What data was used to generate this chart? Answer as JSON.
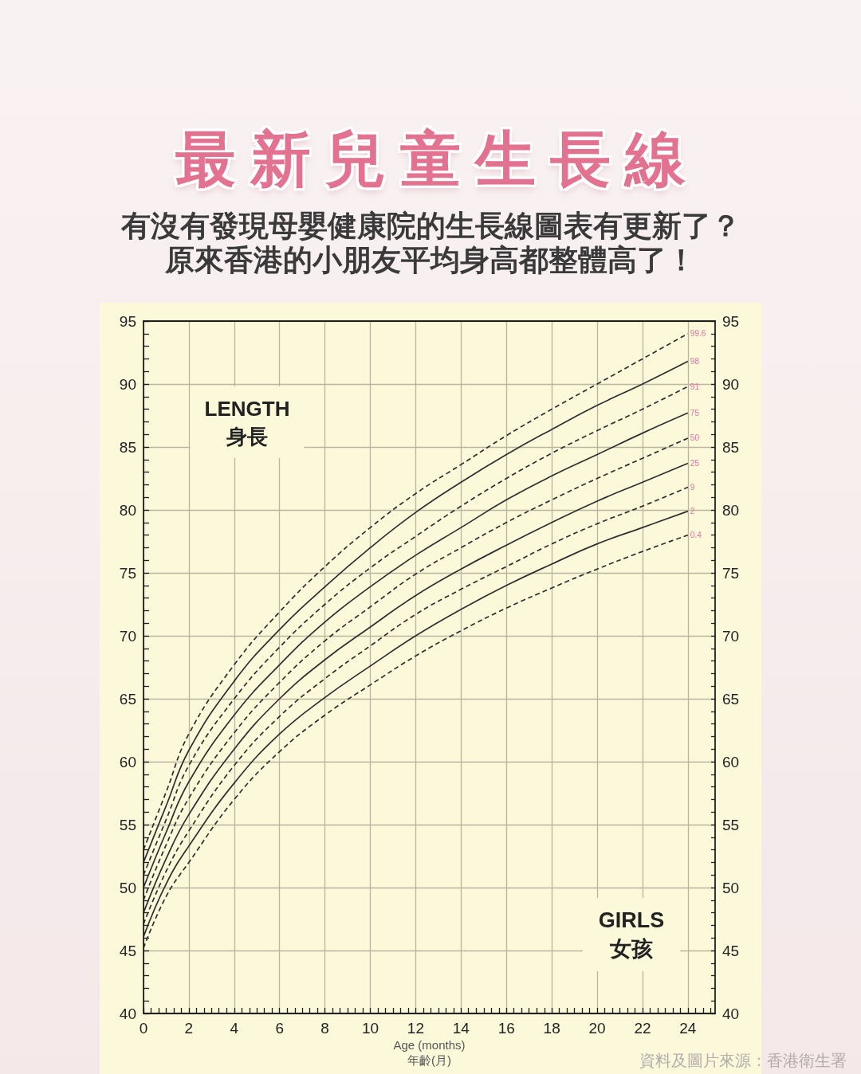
{
  "chart_data": {
    "type": "line",
    "title": "最新兒童生長線",
    "subtitle": "有沒有發現母嬰健康院的生長線圖表有更新了？原來香港的小朋友平均身高都整體高了！",
    "xlabel": "Age (months)\n年齡(月)",
    "ylabel": "LENGTH\n身長",
    "annotations": [
      "GIRLS\n女孩",
      "資料及圖片來源：香港衛生署"
    ],
    "x": [
      0,
      1,
      2,
      4,
      6,
      8,
      10,
      12,
      14,
      16,
      18,
      20,
      22,
      24
    ],
    "series": [
      {
        "name": "99.6",
        "color": "#2e2e2e",
        "line_style": "dashed",
        "values": [
          53.0,
          57.6,
          62.2,
          67.7,
          71.9,
          75.5,
          78.6,
          81.3,
          83.6,
          85.9,
          88.0,
          90.0,
          92.0,
          94.0
        ]
      },
      {
        "name": "98",
        "color": "#2e2e2e",
        "line_style": "solid",
        "values": [
          52.0,
          56.5,
          60.9,
          66.4,
          70.5,
          73.9,
          77.0,
          79.8,
          82.2,
          84.4,
          86.4,
          88.3,
          90.0,
          91.8
        ]
      },
      {
        "name": "91",
        "color": "#2e2e2e",
        "line_style": "dashed",
        "values": [
          51.0,
          55.4,
          59.7,
          65.0,
          69.1,
          72.5,
          75.4,
          77.9,
          80.3,
          82.5,
          84.5,
          86.3,
          88.0,
          89.8
        ]
      },
      {
        "name": "75",
        "color": "#2e2e2e",
        "line_style": "solid",
        "values": [
          50.0,
          54.4,
          58.4,
          63.7,
          67.7,
          71.1,
          73.9,
          76.4,
          78.6,
          80.8,
          82.7,
          84.4,
          86.1,
          87.7
        ]
      },
      {
        "name": "50",
        "color": "#2e2e2e",
        "line_style": "dashed",
        "values": [
          49.0,
          53.4,
          57.1,
          62.3,
          66.3,
          69.6,
          72.3,
          74.9,
          77.0,
          79.0,
          80.8,
          82.5,
          84.1,
          85.7
        ]
      },
      {
        "name": "25",
        "color": "#2e2e2e",
        "line_style": "solid",
        "values": [
          48.0,
          52.3,
          55.8,
          61.0,
          65.0,
          68.1,
          70.7,
          73.2,
          75.3,
          77.2,
          79.0,
          80.7,
          82.2,
          83.7
        ]
      },
      {
        "name": "9",
        "color": "#2e2e2e",
        "line_style": "dashed",
        "values": [
          47.1,
          51.3,
          54.5,
          59.7,
          63.6,
          66.6,
          69.2,
          71.7,
          73.7,
          75.5,
          77.3,
          78.9,
          80.3,
          81.8
        ]
      },
      {
        "name": "2",
        "color": "#2e2e2e",
        "line_style": "solid",
        "values": [
          46.1,
          50.3,
          53.3,
          58.3,
          62.2,
          65.1,
          67.6,
          70.0,
          72.1,
          74.0,
          75.7,
          77.3,
          78.6,
          79.9
        ]
      },
      {
        "name": "0.4",
        "color": "#2e2e2e",
        "line_style": "dashed",
        "values": [
          45.2,
          49.3,
          52.0,
          57.0,
          60.8,
          63.7,
          66.1,
          68.4,
          70.4,
          72.2,
          73.8,
          75.3,
          76.7,
          78.0
        ]
      }
    ],
    "xlim": [
      0,
      25.2
    ],
    "xticks": [
      0,
      {
        "value": 0.33,
        "label": null
      },
      {
        "value": 0.67,
        "label": null
      },
      {
        "value": 1,
        "label": null
      },
      {
        "value": 1.33,
        "label": null
      },
      {
        "value": 1.67,
        "label": null
      },
      2,
      {
        "value": 2.33,
        "label": null
      },
      {
        "value": 2.67,
        "label": null
      },
      {
        "value": 3,
        "label": null
      },
      {
        "value": 3.33,
        "label": null
      },
      {
        "value": 3.67,
        "label": null
      },
      4,
      {
        "value": 4.33,
        "label": null
      },
      {
        "value": 4.67,
        "label": null
      },
      {
        "value": 5,
        "label": null
      },
      {
        "value": 5.33,
        "label": null
      },
      {
        "value": 5.67,
        "label": null
      },
      6,
      {
        "value": 6.33,
        "label": null
      },
      {
        "value": 6.67,
        "label": null
      },
      {
        "value": 7,
        "label": null
      },
      {
        "value": 7.33,
        "label": null
      },
      {
        "value": 7.67,
        "label": null
      },
      8,
      {
        "value": 8.33,
        "label": null
      },
      {
        "value": 8.67,
        "label": null
      },
      {
        "value": 9,
        "label": null
      },
      {
        "value": 9.33,
        "label": null
      },
      {
        "value": 9.67,
        "label": null
      },
      10,
      {
        "value": 10.33,
        "label": null
      },
      {
        "value": 10.67,
        "label": null
      },
      {
        "value": 11,
        "label": null
      },
      {
        "value": 11.33,
        "label": null
      },
      {
        "value": 11.67,
        "label": null
      },
      12,
      {
        "value": 12.33,
        "label": null
      },
      {
        "value": 12.67,
        "label": null
      },
      {
        "value": 13,
        "label": null
      },
      {
        "value": 13.33,
        "label": null
      },
      {
        "value": 13.67,
        "label": null
      },
      14,
      {
        "value": 14.33,
        "label": null
      },
      {
        "value": 14.67,
        "label": null
      },
      {
        "value": 15,
        "label": null
      },
      {
        "value": 15.33,
        "label": null
      },
      {
        "value": 15.67,
        "label": null
      },
      16,
      {
        "value": 16.33,
        "label": null
      },
      {
        "value": 16.67,
        "label": null
      },
      {
        "value": 17,
        "label": null
      },
      {
        "value": 17.33,
        "label": null
      },
      {
        "value": 17.67,
        "label": null
      },
      18,
      {
        "value": 18.33,
        "label": null
      },
      {
        "value": 18.67,
        "label": null
      },
      {
        "value": 19,
        "label": null
      },
      {
        "value": 19.33,
        "label": null
      },
      {
        "value": 19.67,
        "label": null
      },
      20,
      {
        "value": 20.33,
        "label": null
      },
      {
        "value": 20.67,
        "label": null
      },
      {
        "value": 21,
        "label": null
      },
      {
        "value": 21.33,
        "label": null
      },
      {
        "value": 21.67,
        "label": null
      },
      22,
      {
        "value": 22.33,
        "label": null
      },
      {
        "value": 22.67,
        "label": null
      },
      {
        "value": 23,
        "label": null
      },
      {
        "value": 23.33,
        "label": null
      },
      {
        "value": 23.67,
        "label": null
      },
      24,
      {
        "value": 24.33,
        "label": null
      },
      {
        "value": 24.67,
        "label": null
      },
      {
        "value": 25,
        "label": null
      }
    ],
    "ylim": [
      40,
      95
    ],
    "yticks": [
      40,
      {
        "value": 41,
        "label": null
      },
      {
        "value": 42,
        "label": null
      },
      {
        "value": 43,
        "label": null
      },
      {
        "value": 44,
        "label": null
      },
      45,
      {
        "value": 46,
        "label": null
      },
      {
        "value": 47,
        "label": null
      },
      {
        "value": 48,
        "label": null
      },
      {
        "value": 49,
        "label": null
      },
      50,
      {
        "value": 51,
        "label": null
      },
      {
        "value": 52,
        "label": null
      },
      {
        "value": 53,
        "label": null
      },
      {
        "value": 54,
        "label": null
      },
      55,
      {
        "value": 56,
        "label": null
      },
      {
        "value": 57,
        "label": null
      },
      {
        "value": 58,
        "label": null
      },
      {
        "value": 59,
        "label": null
      },
      60,
      {
        "value": 61,
        "label": null
      },
      {
        "value": 62,
        "label": null
      },
      {
        "value": 63,
        "label": null
      },
      {
        "value": 64,
        "label": null
      },
      65,
      {
        "value": 66,
        "label": null
      },
      {
        "value": 67,
        "label": null
      },
      {
        "value": 68,
        "label": null
      },
      {
        "value": 69,
        "label": null
      },
      70,
      {
        "value": 71,
        "label": null
      },
      {
        "value": 72,
        "label": null
      },
      {
        "value": 73,
        "label": null
      },
      {
        "value": 74,
        "label": null
      },
      75,
      {
        "value": 76,
        "label": null
      },
      {
        "value": 77,
        "label": null
      },
      {
        "value": 78,
        "label": null
      },
      {
        "value": 79,
        "label": null
      },
      80,
      {
        "value": 81,
        "label": null
      },
      {
        "value": 82,
        "label": null
      },
      {
        "value": 83,
        "label": null
      },
      {
        "value": 84,
        "label": null
      },
      85,
      {
        "value": 86,
        "label": null
      },
      {
        "value": 87,
        "label": null
      },
      {
        "value": 88,
        "label": null
      },
      {
        "value": 89,
        "label": null
      },
      90,
      {
        "value": 91,
        "label": null
      },
      {
        "value": 92,
        "label": null
      },
      {
        "value": 93,
        "label": null
      },
      {
        "value": 94,
        "label": null
      },
      95
    ],
    "y2lim": [
      40,
      95
    ],
    "y2ticks": [
      40,
      {
        "value": 41,
        "label": null
      },
      {
        "value": 42,
        "label": null
      },
      {
        "value": 43,
        "label": null
      },
      {
        "value": 44,
        "label": null
      },
      45,
      {
        "value": 46,
        "label": null
      },
      {
        "value": 47,
        "label": null
      },
      {
        "value": 48,
        "label": null
      },
      {
        "value": 49,
        "label": null
      },
      50,
      {
        "value": 51,
        "label": null
      },
      {
        "value": 52,
        "label": null
      },
      {
        "value": 53,
        "label": null
      },
      {
        "value": 54,
        "label": null
      },
      55,
      {
        "value": 56,
        "label": null
      },
      {
        "value": 57,
        "label": null
      },
      {
        "value": 58,
        "label": null
      },
      {
        "value": 59,
        "label": null
      },
      60,
      {
        "value": 61,
        "label": null
      },
      {
        "value": 62,
        "label": null
      },
      {
        "value": 63,
        "label": null
      },
      {
        "value": 64,
        "label": null
      },
      65,
      {
        "value": 66,
        "label": null
      },
      {
        "value": 67,
        "label": null
      },
      {
        "value": 68,
        "label": null
      },
      {
        "value": 69,
        "label": null
      },
      70,
      {
        "value": 71,
        "label": null
      },
      {
        "value": 72,
        "label": null
      },
      {
        "value": 73,
        "label": null
      },
      {
        "value": 74,
        "label": null
      },
      75,
      {
        "value": 76,
        "label": null
      },
      {
        "value": 77,
        "label": null
      },
      {
        "value": 78,
        "label": null
      },
      {
        "value": 79,
        "label": null
      },
      80,
      {
        "value": 81,
        "label": null
      },
      {
        "value": 82,
        "label": null
      },
      {
        "value": 83,
        "label": null
      },
      {
        "value": 84,
        "label": null
      },
      85,
      {
        "value": 86,
        "label": null
      },
      {
        "value": 87,
        "label": null
      },
      {
        "value": 88,
        "label": null
      },
      {
        "value": 89,
        "label": null
      },
      90,
      {
        "value": 91,
        "label": null
      },
      {
        "value": 92,
        "label": null
      },
      {
        "value": 93,
        "label": null
      },
      {
        "value": 94,
        "label": null
      },
      95
    ],
    "grid": true,
    "legend": false,
    "marker": "none"
  }
}
